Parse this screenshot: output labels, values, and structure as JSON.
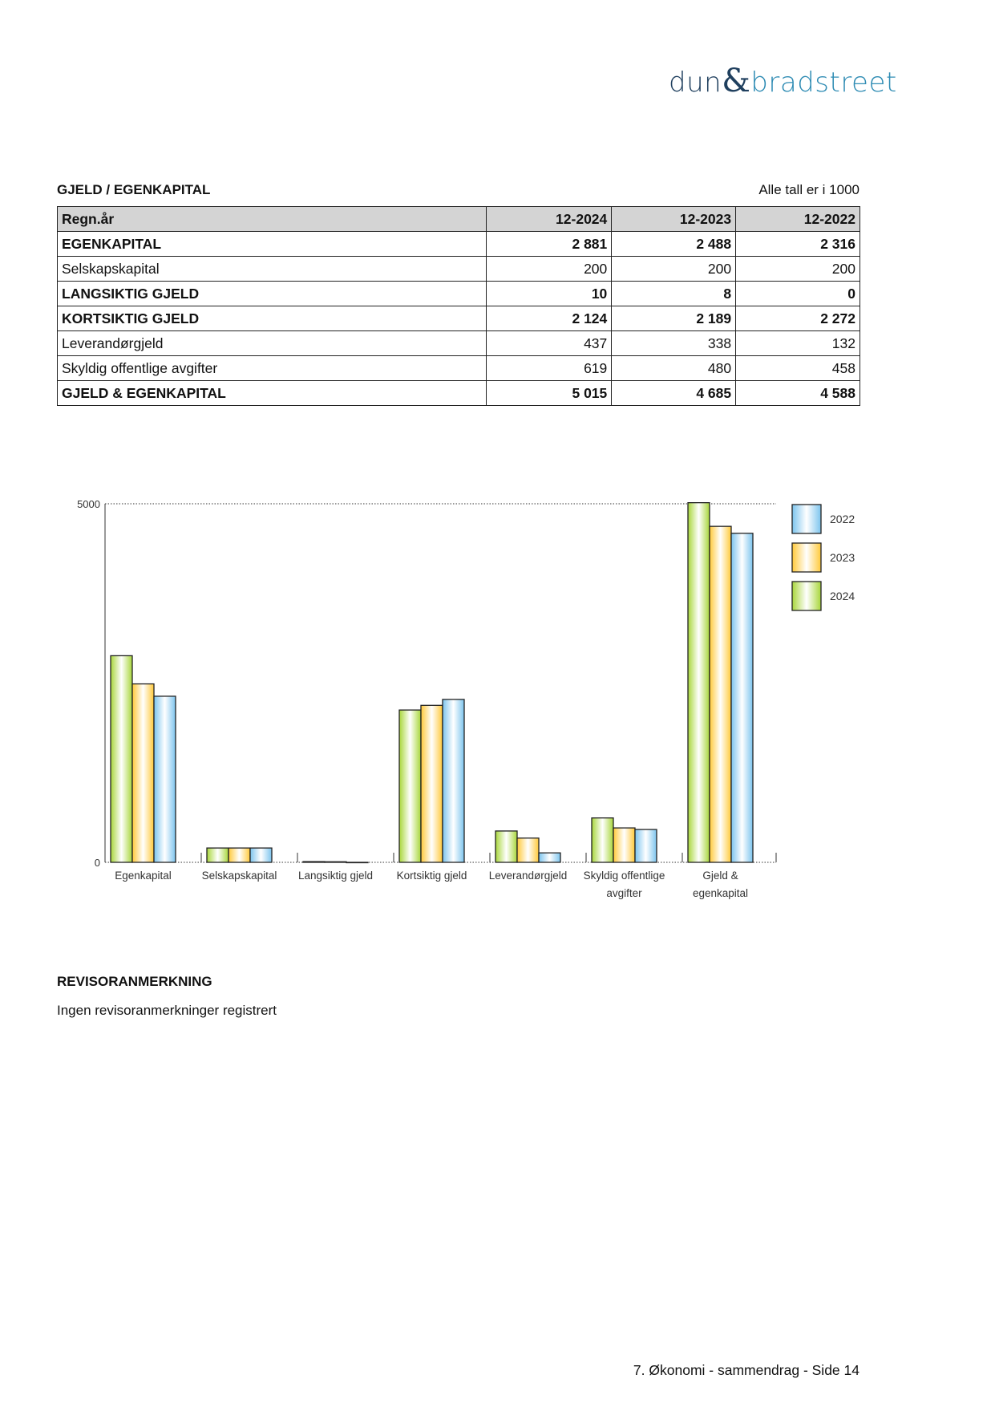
{
  "logo": {
    "part1": "dun",
    "amp": "&",
    "part2": "bradstreet"
  },
  "section_title": "GJELD / EGENKAPITAL",
  "units_note": "Alle tall er i 1000",
  "table": {
    "headers": [
      "Regn.år",
      "12-2024",
      "12-2023",
      "12-2022"
    ],
    "rows": [
      {
        "label": "EGENKAPITAL",
        "bold": true,
        "values": [
          "2 881",
          "2 488",
          "2 316"
        ]
      },
      {
        "label": "Selskapskapital",
        "bold": false,
        "values": [
          "200",
          "200",
          "200"
        ]
      },
      {
        "label": "LANGSIKTIG GJELD",
        "bold": true,
        "values": [
          "10",
          "8",
          "0"
        ]
      },
      {
        "label": "KORTSIKTIG GJELD",
        "bold": true,
        "values": [
          "2 124",
          "2 189",
          "2 272"
        ]
      },
      {
        "label": "Leverandørgjeld",
        "bold": false,
        "values": [
          "437",
          "338",
          "132"
        ]
      },
      {
        "label": "Skyldig offentlige avgifter",
        "bold": false,
        "values": [
          "619",
          "480",
          "458"
        ]
      },
      {
        "label": "GJELD & EGENKAPITAL",
        "bold": true,
        "values": [
          "5 015",
          "4 685",
          "4 588"
        ]
      }
    ]
  },
  "chart_data": {
    "type": "bar",
    "categories": [
      [
        "Egenkapital"
      ],
      [
        "Selskapskapital"
      ],
      [
        "Langsiktig gjeld"
      ],
      [
        "Kortsiktig gjeld"
      ],
      [
        "Leverandørgjeld"
      ],
      [
        "Skyldig offentlige",
        "avgifter"
      ],
      [
        "Gjeld &",
        "egenkapital"
      ]
    ],
    "series": [
      {
        "name": "2024",
        "values": [
          2881,
          200,
          10,
          2124,
          437,
          619,
          5015
        ],
        "color": "#a8d63a"
      },
      {
        "name": "2023",
        "values": [
          2488,
          200,
          8,
          2189,
          338,
          480,
          4685
        ],
        "color": "#ffc93a"
      },
      {
        "name": "2022",
        "values": [
          2316,
          200,
          0,
          2272,
          132,
          458,
          4588
        ],
        "color": "#7cc4ee"
      }
    ],
    "ylim": [
      0,
      5000
    ],
    "yticks": [
      "0",
      "5000"
    ],
    "legend": {
      "placement": "right",
      "order": [
        "2022",
        "2023",
        "2024"
      ]
    },
    "grid": "dotted line at max and baseline"
  },
  "remark": {
    "title": "REVISORANMERKNING",
    "text": "Ingen revisoranmerkninger registrert"
  },
  "footer": "7. Økonomi - sammendrag - Side 14"
}
